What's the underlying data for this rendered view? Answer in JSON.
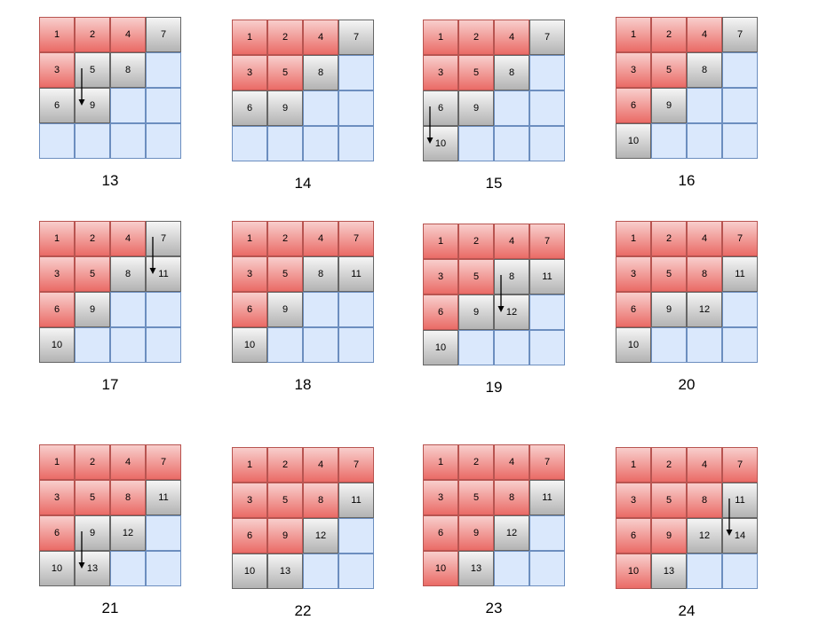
{
  "colors": {
    "visited": "#ea6b66",
    "queued": "#b3b3b3",
    "empty": "#dae8fc"
  },
  "steps": [
    {
      "label": "13",
      "cells": [
        "1",
        "2",
        "4",
        "7",
        "3",
        "5",
        "8",
        "",
        "6",
        "9",
        "",
        "",
        "",
        "",
        "",
        ""
      ],
      "colors": "rrrgrggbggbbbbbb",
      "arrow": {
        "from": "5",
        "to": "9"
      }
    },
    {
      "label": "14",
      "cells": [
        "1",
        "2",
        "4",
        "7",
        "3",
        "5",
        "8",
        "",
        "6",
        "9",
        "",
        "",
        "",
        "",
        "",
        ""
      ],
      "colors": "rrrgrrgbggbbbbbb"
    },
    {
      "label": "15",
      "cells": [
        "1",
        "2",
        "4",
        "7",
        "3",
        "5",
        "8",
        "",
        "6",
        "9",
        "",
        "",
        "10",
        "",
        "",
        ""
      ],
      "colors": "rrrgrrgbggbbgbbb",
      "arrow": {
        "from": "6",
        "to": "10"
      }
    },
    {
      "label": "16",
      "cells": [
        "1",
        "2",
        "4",
        "7",
        "3",
        "5",
        "8",
        "",
        "6",
        "9",
        "",
        "",
        "10",
        "",
        "",
        ""
      ],
      "colors": "rrrgrrgbrgbbgbbb"
    },
    {
      "label": "17",
      "cells": [
        "1",
        "2",
        "4",
        "7",
        "3",
        "5",
        "8",
        "11",
        "6",
        "9",
        "",
        "",
        "10",
        "",
        "",
        ""
      ],
      "colors": "rrrgrrggrgbbgbbb",
      "arrow": {
        "from": "7",
        "to": "11"
      }
    },
    {
      "label": "18",
      "cells": [
        "1",
        "2",
        "4",
        "7",
        "3",
        "5",
        "8",
        "11",
        "6",
        "9",
        "",
        "",
        "10",
        "",
        "",
        ""
      ],
      "colors": "rrrrrrggrgbbgbbb"
    },
    {
      "label": "19",
      "cells": [
        "1",
        "2",
        "4",
        "7",
        "3",
        "5",
        "8",
        "11",
        "6",
        "9",
        "12",
        "",
        "10",
        "",
        "",
        ""
      ],
      "colors": "rrrrrrggrggbgbbb",
      "arrow": {
        "from": "8",
        "to": "12"
      }
    },
    {
      "label": "20",
      "cells": [
        "1",
        "2",
        "4",
        "7",
        "3",
        "5",
        "8",
        "11",
        "6",
        "9",
        "12",
        "",
        "10",
        "",
        "",
        ""
      ],
      "colors": "rrrrrrrgrggbgbbb"
    },
    {
      "label": "21",
      "cells": [
        "1",
        "2",
        "4",
        "7",
        "3",
        "5",
        "8",
        "11",
        "6",
        "9",
        "12",
        "",
        "10",
        "13",
        "",
        ""
      ],
      "colors": "rrrrrrrgrggbggbb",
      "arrow": {
        "from": "9",
        "to": "13"
      }
    },
    {
      "label": "22",
      "cells": [
        "1",
        "2",
        "4",
        "7",
        "3",
        "5",
        "8",
        "11",
        "6",
        "9",
        "12",
        "",
        "10",
        "13",
        "",
        ""
      ],
      "colors": "rrrrrrrgrrgbggbb"
    },
    {
      "label": "23",
      "cells": [
        "1",
        "2",
        "4",
        "7",
        "3",
        "5",
        "8",
        "11",
        "6",
        "9",
        "12",
        "",
        "10",
        "13",
        "",
        ""
      ],
      "colors": "rrrrrrrgrrgbrgbb"
    },
    {
      "label": "24",
      "cells": [
        "1",
        "2",
        "4",
        "7",
        "3",
        "5",
        "8",
        "11",
        "6",
        "9",
        "12",
        "14",
        "10",
        "13",
        "",
        ""
      ],
      "colors": "rrrrrrrgrrggrgbb",
      "arrow": {
        "from": "11",
        "to": "14"
      }
    }
  ]
}
